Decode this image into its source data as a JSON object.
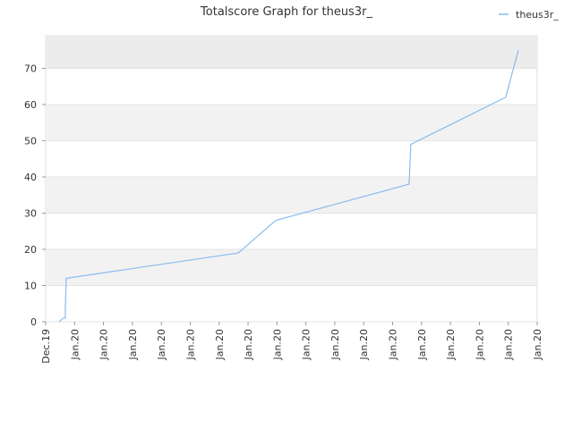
{
  "chart_data": {
    "type": "line",
    "title": "Totalscore Graph for theus3r_",
    "x": [
      0.46,
      0.62,
      0.68,
      0.68,
      0.71,
      6.66,
      7.96,
      12.57,
      12.63,
      15.91,
      16.35
    ],
    "series": [
      {
        "name": "theus3r_",
        "color": "#88bbee",
        "values": [
          0,
          1,
          1,
          3.5,
          12,
          19,
          28,
          38,
          49,
          62,
          75
        ]
      }
    ],
    "xlim": [
      0,
      17
    ],
    "xticks": [
      {
        "value": 0,
        "label": "Dec.19"
      },
      {
        "value": 1,
        "label": "Jan.20"
      },
      {
        "value": 2,
        "label": "Jan.20"
      },
      {
        "value": 3,
        "label": "Jan.20"
      },
      {
        "value": 4,
        "label": "Jan.20"
      },
      {
        "value": 5,
        "label": "Jan.20"
      },
      {
        "value": 6,
        "label": "Jan.20"
      },
      {
        "value": 7,
        "label": "Jan.20"
      },
      {
        "value": 8,
        "label": "Jan.20"
      },
      {
        "value": 9,
        "label": "Jan.20"
      },
      {
        "value": 10,
        "label": "Jan.20"
      },
      {
        "value": 11,
        "label": "Jan.20"
      },
      {
        "value": 12,
        "label": "Jan.20"
      },
      {
        "value": 13,
        "label": "Jan.20"
      },
      {
        "value": 14,
        "label": "Jan.20"
      },
      {
        "value": 15,
        "label": "Jan.20"
      },
      {
        "value": 16,
        "label": "Jan.20"
      },
      {
        "value": 17,
        "label": "Jan.20"
      }
    ],
    "ylim": [
      0,
      79
    ],
    "yticks": [
      0,
      10,
      20,
      30,
      40,
      50,
      60,
      70
    ],
    "grid": true,
    "legend": "top-right"
  }
}
